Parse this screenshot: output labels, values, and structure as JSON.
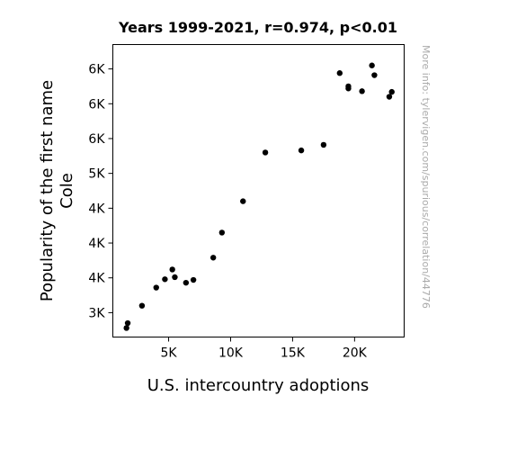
{
  "chart_data": {
    "type": "scatter",
    "title": "Years 1999-2021, r=0.974, p<0.01",
    "xlabel": "U.S. intercountry adoptions",
    "ylabel_lines": [
      "Popularity of the first name",
      "Cole"
    ],
    "watermark": "More info: tylervigen.com/spurious/correlation/44776",
    "xlim": [
      500,
      24000
    ],
    "ylim": [
      2650,
      6850
    ],
    "x_ticks": [
      {
        "value": 5000,
        "label": "5K"
      },
      {
        "value": 10000,
        "label": "10K"
      },
      {
        "value": 15000,
        "label": "15K"
      },
      {
        "value": 20000,
        "label": "20K"
      }
    ],
    "y_ticks": [
      {
        "value": 3000,
        "label": "3K"
      },
      {
        "value": 3500,
        "label": "4K"
      },
      {
        "value": 4000,
        "label": "4K"
      },
      {
        "value": 4500,
        "label": "4K"
      },
      {
        "value": 5000,
        "label": "5K"
      },
      {
        "value": 5500,
        "label": "6K"
      },
      {
        "value": 6000,
        "label": "6K"
      },
      {
        "value": 6500,
        "label": "6K"
      }
    ],
    "grid": false,
    "marker_color": "#000000",
    "points": [
      {
        "x": 1600,
        "y": 2780
      },
      {
        "x": 1700,
        "y": 2850
      },
      {
        "x": 2850,
        "y": 3100
      },
      {
        "x": 4000,
        "y": 3360
      },
      {
        "x": 4700,
        "y": 3480
      },
      {
        "x": 5300,
        "y": 3620
      },
      {
        "x": 5500,
        "y": 3510
      },
      {
        "x": 6400,
        "y": 3430
      },
      {
        "x": 7000,
        "y": 3470
      },
      {
        "x": 8600,
        "y": 3790
      },
      {
        "x": 9300,
        "y": 4150
      },
      {
        "x": 11000,
        "y": 4600
      },
      {
        "x": 12800,
        "y": 5300
      },
      {
        "x": 15700,
        "y": 5330
      },
      {
        "x": 17500,
        "y": 5410
      },
      {
        "x": 18800,
        "y": 6440
      },
      {
        "x": 19500,
        "y": 6220
      },
      {
        "x": 19500,
        "y": 6250
      },
      {
        "x": 20600,
        "y": 6180
      },
      {
        "x": 21400,
        "y": 6550
      },
      {
        "x": 21600,
        "y": 6410
      },
      {
        "x": 22800,
        "y": 6100
      },
      {
        "x": 23000,
        "y": 6170
      }
    ]
  }
}
